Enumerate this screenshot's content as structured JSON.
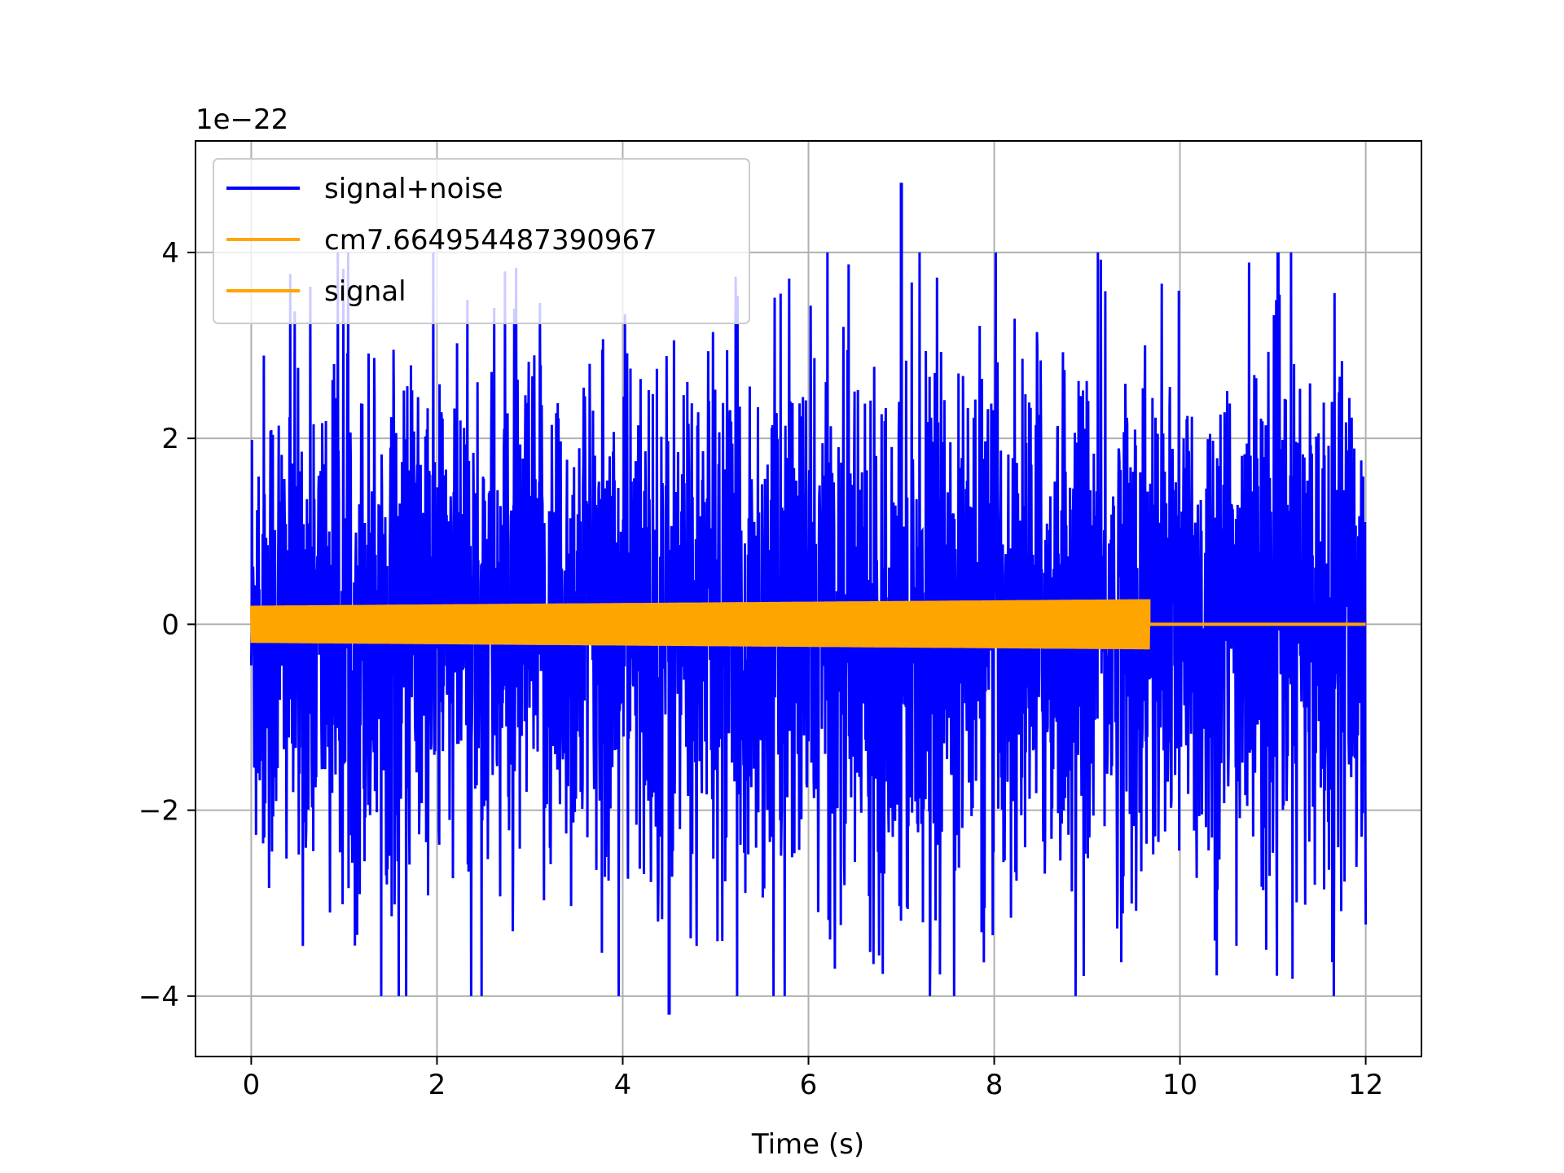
{
  "chart_data": {
    "type": "line",
    "title": "",
    "xlabel": "Time (s)",
    "ylabel": "",
    "y_offset_label": "1e−22",
    "xlim": [
      -0.6,
      12.6
    ],
    "ylim": [
      -4.65,
      5.2
    ],
    "xticks": [
      0,
      2,
      4,
      6,
      8,
      10,
      12
    ],
    "xtick_labels": [
      "0",
      "2",
      "4",
      "6",
      "8",
      "10",
      "12"
    ],
    "yticks": [
      -4,
      -2,
      0,
      2,
      4
    ],
    "ytick_labels": [
      "−4",
      "−2",
      "0",
      "2",
      "4"
    ],
    "grid": true,
    "legend_position": "top-left",
    "series": [
      {
        "name": "signal+noise",
        "color": "#0000ff",
        "description_values": {
          "x_range": [
            0,
            12
          ],
          "typical_envelope": [
            -2.3,
            2.3
          ],
          "max_peak": {
            "x": 7.0,
            "y": 4.75
          },
          "min_peak": {
            "x": 4.5,
            "y": -4.2
          }
        }
      },
      {
        "name": "cm7.664954487390967",
        "color": "#ffa500",
        "description_values": {
          "x_range": [
            0,
            12
          ],
          "flat_value": 0
        }
      },
      {
        "name": "signal",
        "color": "#ffa500",
        "description_values": {
          "x_range": [
            0,
            12
          ],
          "envelope_start": 0.2,
          "envelope_end": 0.27,
          "merger_time": 9.67
        }
      }
    ]
  },
  "legend": {
    "entries": [
      {
        "label": "signal+noise",
        "color": "#0000ff"
      },
      {
        "label": "cm7.664954487390967",
        "color": "#ffa500"
      },
      {
        "label": "signal",
        "color": "#ffa500"
      }
    ]
  }
}
